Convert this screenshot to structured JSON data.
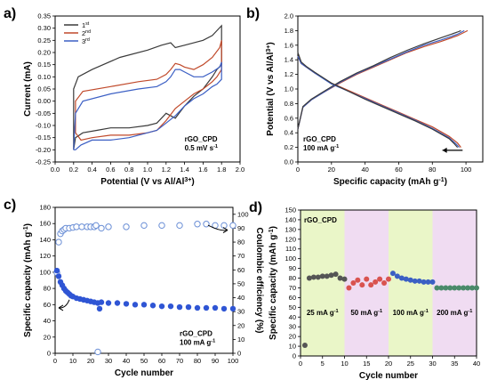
{
  "chart_data": [
    {
      "panel": "a)",
      "type": "line",
      "xlabel": "Potential (V vs Al/Al",
      "xlabel_sup": "3+",
      "xlabel_end": ")",
      "ylabel": "Current (mA)",
      "xlim": [
        0.0,
        2.0
      ],
      "ylim": [
        -0.25,
        0.35
      ],
      "xticks": [
        "0.0",
        "0.2",
        "0.4",
        "0.6",
        "0.8",
        "1.0",
        "1.2",
        "1.4",
        "1.6",
        "1.8",
        "2.0"
      ],
      "yticks": [
        "-0.25",
        "-0.20",
        "-0.15",
        "-0.10",
        "-0.05",
        "0.00",
        "0.05",
        "0.10",
        "0.15",
        "0.20",
        "0.25",
        "0.30",
        "0.35"
      ],
      "legend": [
        {
          "label": "1",
          "sup": "st",
          "color": "#3a3a3a"
        },
        {
          "label": "2",
          "sup": "nd",
          "color": "#c0492a"
        },
        {
          "label": "3",
          "sup": "rd",
          "color": "#3b5fc4"
        }
      ],
      "annotation": [
        "rGO_CPD",
        "0.5 mV s"
      ],
      "annotation_sup": "-1",
      "series": [
        {
          "name": "1st",
          "color": "#3a3a3a",
          "x": [
            0.2,
            0.2,
            0.25,
            0.4,
            0.7,
            1.0,
            1.15,
            1.25,
            1.3,
            1.4,
            1.5,
            1.6,
            1.7,
            1.75,
            1.8,
            1.8,
            1.75,
            1.7,
            1.6,
            1.5,
            1.45,
            1.4,
            1.3,
            1.2,
            1.1,
            1.0,
            0.8,
            0.6,
            0.45,
            0.3,
            0.22,
            0.2
          ],
          "y": [
            -0.2,
            0.05,
            0.1,
            0.13,
            0.18,
            0.21,
            0.23,
            0.24,
            0.22,
            0.23,
            0.24,
            0.25,
            0.27,
            0.29,
            0.31,
            0.15,
            0.13,
            0.1,
            0.05,
            0.02,
            0.0,
            -0.02,
            -0.07,
            -0.05,
            -0.09,
            -0.1,
            -0.11,
            -0.11,
            -0.12,
            -0.13,
            -0.15,
            -0.2
          ]
        },
        {
          "name": "2nd",
          "color": "#c0492a",
          "x": [
            0.22,
            0.22,
            0.3,
            0.6,
            0.9,
            1.1,
            1.2,
            1.25,
            1.3,
            1.35,
            1.4,
            1.5,
            1.6,
            1.7,
            1.78,
            1.8,
            1.8,
            1.75,
            1.7,
            1.6,
            1.5,
            1.4,
            1.3,
            1.2,
            1.1,
            1.0,
            0.8,
            0.6,
            0.4,
            0.28,
            0.22
          ],
          "y": [
            -0.13,
            0.0,
            0.04,
            0.06,
            0.08,
            0.09,
            0.11,
            0.13,
            0.155,
            0.15,
            0.14,
            0.13,
            0.15,
            0.18,
            0.22,
            0.25,
            0.13,
            0.1,
            0.08,
            0.05,
            0.03,
            0.0,
            -0.03,
            -0.08,
            -0.12,
            -0.13,
            -0.14,
            -0.14,
            -0.15,
            -0.16,
            -0.13
          ]
        },
        {
          "name": "3rd",
          "color": "#3b5fc4",
          "x": [
            0.2,
            0.22,
            0.3,
            0.6,
            0.9,
            1.1,
            1.2,
            1.25,
            1.3,
            1.35,
            1.4,
            1.5,
            1.6,
            1.7,
            1.78,
            1.8,
            1.8,
            1.75,
            1.7,
            1.6,
            1.5,
            1.4,
            1.3,
            1.2,
            1.1,
            1.0,
            0.8,
            0.6,
            0.4,
            0.28,
            0.22,
            0.2
          ],
          "y": [
            -0.2,
            -0.05,
            0.0,
            0.03,
            0.05,
            0.06,
            0.08,
            0.1,
            0.13,
            0.13,
            0.12,
            0.1,
            0.1,
            0.12,
            0.14,
            0.16,
            0.09,
            0.07,
            0.06,
            0.03,
            0.01,
            -0.02,
            -0.06,
            -0.09,
            -0.12,
            -0.13,
            -0.15,
            -0.16,
            -0.16,
            -0.18,
            -0.2,
            -0.2
          ]
        }
      ]
    },
    {
      "panel": "b)",
      "type": "line",
      "xlabel": "Specific capacity (mAh g",
      "xlabel_sup": "-1",
      "xlabel_end": ")",
      "ylabel": "Potential (V vs Al/Al",
      "ylabel_sup": "3+",
      "ylabel_end": ")",
      "xlim": [
        0,
        110
      ],
      "ylim": [
        0.0,
        2.0
      ],
      "xticks": [
        "0",
        "20",
        "40",
        "60",
        "80",
        "100"
      ],
      "yticks": [
        "0.0",
        "0.2",
        "0.4",
        "0.6",
        "0.8",
        "1.0",
        "1.2",
        "1.4",
        "1.6",
        "1.8",
        "2.0"
      ],
      "annotation": [
        "rGO_CPD",
        "100 mA g"
      ],
      "annotation_sup": "-1",
      "series": [
        {
          "name": "charge-1",
          "color": "#c0492a",
          "x": [
            0,
            3,
            8,
            15,
            25,
            35,
            45,
            55,
            65,
            75,
            85,
            95,
            101
          ],
          "y": [
            0.45,
            0.75,
            0.85,
            0.95,
            1.08,
            1.2,
            1.3,
            1.4,
            1.5,
            1.58,
            1.65,
            1.73,
            1.8
          ]
        },
        {
          "name": "charge-2",
          "color": "#3b5fc4",
          "x": [
            0,
            3,
            8,
            15,
            25,
            35,
            45,
            55,
            65,
            75,
            85,
            95,
            99
          ],
          "y": [
            0.45,
            0.75,
            0.85,
            0.95,
            1.09,
            1.21,
            1.31,
            1.41,
            1.51,
            1.6,
            1.67,
            1.75,
            1.8
          ]
        },
        {
          "name": "charge-3",
          "color": "#3a3a3a",
          "x": [
            0,
            3,
            8,
            15,
            25,
            35,
            45,
            55,
            65,
            75,
            85,
            95,
            97
          ],
          "y": [
            0.45,
            0.76,
            0.86,
            0.96,
            1.1,
            1.22,
            1.32,
            1.43,
            1.53,
            1.62,
            1.7,
            1.78,
            1.8
          ]
        },
        {
          "name": "discharge-1",
          "color": "#c0492a",
          "x": [
            0,
            2,
            5,
            10,
            20,
            30,
            40,
            50,
            60,
            70,
            80,
            90,
            95,
            97
          ],
          "y": [
            1.45,
            1.35,
            1.3,
            1.22,
            1.08,
            0.98,
            0.88,
            0.78,
            0.68,
            0.58,
            0.48,
            0.35,
            0.26,
            0.2
          ]
        },
        {
          "name": "discharge-2",
          "color": "#3b5fc4",
          "x": [
            0,
            2,
            5,
            10,
            20,
            30,
            40,
            50,
            60,
            70,
            80,
            90,
            94,
            96
          ],
          "y": [
            1.45,
            1.35,
            1.3,
            1.22,
            1.07,
            0.97,
            0.87,
            0.77,
            0.67,
            0.57,
            0.46,
            0.33,
            0.25,
            0.2
          ]
        },
        {
          "name": "discharge-3",
          "color": "#3a3a3a",
          "x": [
            0,
            2,
            5,
            10,
            20,
            30,
            40,
            50,
            60,
            70,
            80,
            90,
            93,
            95
          ],
          "y": [
            1.5,
            1.37,
            1.31,
            1.23,
            1.08,
            0.97,
            0.86,
            0.76,
            0.66,
            0.56,
            0.45,
            0.32,
            0.25,
            0.2
          ]
        }
      ]
    },
    {
      "panel": "c)",
      "type": "scatter",
      "xlabel": "Cycle number",
      "ylabel": "Specific capacity (mAh g",
      "ylabel_sup": "-1",
      "ylabel_end": ")",
      "y2label": "Coulombic efficiency (%)",
      "xlim": [
        0,
        100
      ],
      "ylim": [
        0,
        180
      ],
      "y2lim": [
        0,
        105
      ],
      "xticks": [
        "0",
        "10",
        "20",
        "30",
        "40",
        "50",
        "60",
        "70",
        "80",
        "90",
        "100"
      ],
      "yticks": [
        "0",
        "20",
        "40",
        "60",
        "80",
        "100",
        "120",
        "140",
        "160",
        "180"
      ],
      "y2ticks": [
        "0",
        "10",
        "20",
        "30",
        "40",
        "50",
        "60",
        "70",
        "80",
        "90",
        "100"
      ],
      "annotation": [
        "rGO_CPD",
        "100 mA g"
      ],
      "annotation_sup": "-1",
      "capacity_color": "#2f55d4",
      "ce_color": "#6b8fd6",
      "capacity": [
        [
          1,
          102
        ],
        [
          2,
          95
        ],
        [
          3,
          88
        ],
        [
          4,
          84
        ],
        [
          5,
          80
        ],
        [
          6,
          77
        ],
        [
          7,
          75
        ],
        [
          8,
          73
        ],
        [
          9,
          71
        ],
        [
          10,
          70
        ],
        [
          12,
          68
        ],
        [
          14,
          67
        ],
        [
          16,
          66
        ],
        [
          18,
          65
        ],
        [
          20,
          64
        ],
        [
          22,
          63
        ],
        [
          24,
          62
        ],
        [
          25,
          55
        ],
        [
          26,
          63
        ],
        [
          30,
          62
        ],
        [
          35,
          62
        ],
        [
          40,
          61
        ],
        [
          45,
          60
        ],
        [
          50,
          60
        ],
        [
          55,
          59
        ],
        [
          60,
          58
        ],
        [
          65,
          58
        ],
        [
          70,
          57
        ],
        [
          75,
          57
        ],
        [
          80,
          56
        ],
        [
          85,
          56
        ],
        [
          90,
          56
        ],
        [
          95,
          55
        ],
        [
          100,
          55
        ]
      ],
      "efficiency": [
        [
          1,
          58
        ],
        [
          2,
          80
        ],
        [
          3,
          86
        ],
        [
          4,
          88
        ],
        [
          5,
          89
        ],
        [
          6,
          90
        ],
        [
          8,
          90
        ],
        [
          10,
          90.5
        ],
        [
          12,
          91
        ],
        [
          15,
          91
        ],
        [
          18,
          91
        ],
        [
          20,
          91
        ],
        [
          22,
          91
        ],
        [
          23,
          92
        ],
        [
          24,
          1
        ],
        [
          26,
          90
        ],
        [
          30,
          91
        ],
        [
          40,
          91
        ],
        [
          50,
          92
        ],
        [
          60,
          92
        ],
        [
          70,
          92
        ],
        [
          80,
          93
        ],
        [
          85,
          93
        ],
        [
          90,
          92
        ],
        [
          95,
          92
        ],
        [
          100,
          92
        ]
      ]
    },
    {
      "panel": "d)",
      "type": "scatter",
      "xlabel": "Cycle number",
      "ylabel": "Specific capacity (mAh g",
      "ylabel_sup": "-1",
      "ylabel_end": ")",
      "xlim": [
        0,
        40
      ],
      "ylim": [
        0,
        150
      ],
      "xticks": [
        "0",
        "5",
        "10",
        "15",
        "20",
        "25",
        "30",
        "35",
        "40"
      ],
      "yticks": [
        "0",
        "10",
        "20",
        "30",
        "40",
        "50",
        "60",
        "70",
        "80",
        "90",
        "100",
        "110",
        "120",
        "130",
        "140",
        "150"
      ],
      "sample_label": "rGO_CPD",
      "regions": [
        {
          "x0": 0,
          "x1": 10,
          "color": "#eaf6c8",
          "label": "25 mA g",
          "sup": "-1"
        },
        {
          "x0": 10,
          "x1": 20,
          "color": "#f0dcf2",
          "label": "50 mA g",
          "sup": "-1"
        },
        {
          "x0": 20,
          "x1": 30,
          "color": "#eaf6c8",
          "label": "100 mA g",
          "sup": "-1"
        },
        {
          "x0": 30,
          "x1": 40,
          "color": "#f0dcf2",
          "label": "200 mA g",
          "sup": "-1"
        }
      ],
      "points": [
        {
          "x": 1,
          "y": 11,
          "color": "#555555"
        },
        {
          "x": 2,
          "y": 80,
          "color": "#555555"
        },
        {
          "x": 3,
          "y": 81,
          "color": "#555555"
        },
        {
          "x": 4,
          "y": 81,
          "color": "#555555"
        },
        {
          "x": 5,
          "y": 82,
          "color": "#555555"
        },
        {
          "x": 6,
          "y": 82,
          "color": "#555555"
        },
        {
          "x": 7,
          "y": 83,
          "color": "#555555"
        },
        {
          "x": 8,
          "y": 84,
          "color": "#555555"
        },
        {
          "x": 9,
          "y": 80,
          "color": "#555555"
        },
        {
          "x": 10,
          "y": 79,
          "color": "#555555"
        },
        {
          "x": 11,
          "y": 70,
          "color": "#d9534f"
        },
        {
          "x": 12,
          "y": 75,
          "color": "#d9534f"
        },
        {
          "x": 13,
          "y": 78,
          "color": "#d9534f"
        },
        {
          "x": 14,
          "y": 73,
          "color": "#d9534f"
        },
        {
          "x": 15,
          "y": 79,
          "color": "#d9534f"
        },
        {
          "x": 16,
          "y": 73,
          "color": "#d9534f"
        },
        {
          "x": 17,
          "y": 76,
          "color": "#d9534f"
        },
        {
          "x": 18,
          "y": 79,
          "color": "#d9534f"
        },
        {
          "x": 19,
          "y": 75,
          "color": "#d9534f"
        },
        {
          "x": 20,
          "y": 79,
          "color": "#d9534f"
        },
        {
          "x": 21,
          "y": 85,
          "color": "#3b5fc4"
        },
        {
          "x": 22,
          "y": 82,
          "color": "#3b5fc4"
        },
        {
          "x": 23,
          "y": 80,
          "color": "#3b5fc4"
        },
        {
          "x": 24,
          "y": 79,
          "color": "#3b5fc4"
        },
        {
          "x": 25,
          "y": 78,
          "color": "#3b5fc4"
        },
        {
          "x": 26,
          "y": 77,
          "color": "#3b5fc4"
        },
        {
          "x": 27,
          "y": 77,
          "color": "#3b5fc4"
        },
        {
          "x": 28,
          "y": 76,
          "color": "#3b5fc4"
        },
        {
          "x": 29,
          "y": 76,
          "color": "#3b5fc4"
        },
        {
          "x": 30,
          "y": 76,
          "color": "#3b5fc4"
        },
        {
          "x": 31,
          "y": 70,
          "color": "#4a8a6a"
        },
        {
          "x": 32,
          "y": 70,
          "color": "#4a8a6a"
        },
        {
          "x": 33,
          "y": 70,
          "color": "#4a8a6a"
        },
        {
          "x": 34,
          "y": 70,
          "color": "#4a8a6a"
        },
        {
          "x": 35,
          "y": 70,
          "color": "#4a8a6a"
        },
        {
          "x": 36,
          "y": 70,
          "color": "#4a8a6a"
        },
        {
          "x": 37,
          "y": 70,
          "color": "#4a8a6a"
        },
        {
          "x": 38,
          "y": 70,
          "color": "#4a8a6a"
        },
        {
          "x": 39,
          "y": 70,
          "color": "#4a8a6a"
        },
        {
          "x": 40,
          "y": 70,
          "color": "#4a8a6a"
        }
      ]
    }
  ]
}
